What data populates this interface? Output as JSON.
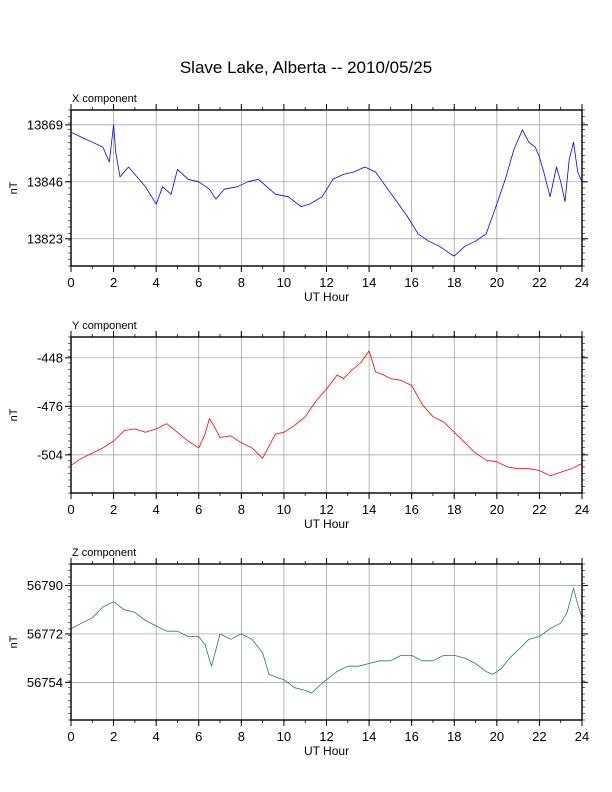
{
  "title": "Slave Lake, Alberta -- 2010/05/25",
  "chart_data": [
    {
      "type": "line",
      "panel_label": "X component",
      "xlabel": "UT Hour",
      "ylabel": "nT",
      "xlim": [
        0,
        24
      ],
      "ylim": [
        13812,
        13875
      ],
      "xticks": [
        0,
        2,
        4,
        6,
        8,
        10,
        12,
        14,
        16,
        18,
        20,
        22,
        24
      ],
      "yticks": [
        13823,
        13846,
        13869
      ],
      "grid": true,
      "color": "#0000ff",
      "x": [
        0,
        0.5,
        1,
        1.5,
        1.8,
        2.0,
        2.1,
        2.3,
        2.7,
        3.0,
        3.5,
        4.0,
        4.3,
        4.7,
        5.0,
        5.5,
        6.0,
        6.5,
        6.8,
        7.2,
        7.8,
        8.3,
        8.8,
        9.2,
        9.6,
        10.2,
        10.8,
        11.2,
        11.8,
        12.3,
        12.8,
        13.3,
        13.8,
        14.3,
        14.8,
        15.3,
        15.8,
        16.3,
        16.8,
        17.3,
        17.8,
        18.0,
        18.5,
        19.0,
        19.5,
        20.0,
        20.4,
        20.8,
        21.2,
        21.5,
        21.8,
        22.0,
        22.2,
        22.5,
        22.8,
        23.0,
        23.2,
        23.4,
        23.6,
        23.8,
        24.0
      ],
      "y": [
        13866,
        13864,
        13862,
        13860,
        13854,
        13869,
        13858,
        13848,
        13852,
        13849,
        13844,
        13837,
        13844,
        13841,
        13851,
        13847,
        13846,
        13843,
        13839,
        13843,
        13844,
        13846,
        13847,
        13844,
        13841,
        13840,
        13836,
        13837,
        13840,
        13847,
        13849,
        13850,
        13852,
        13850,
        13844,
        13838,
        13832,
        13825,
        13822,
        13820,
        13817,
        13816,
        13820,
        13822,
        13825,
        13837,
        13847,
        13859,
        13867,
        13862,
        13860,
        13856,
        13850,
        13840,
        13852,
        13846,
        13838,
        13855,
        13862,
        13850,
        13846
      ]
    },
    {
      "type": "line",
      "panel_label": "Y component",
      "xlabel": "UT Hour",
      "ylabel": "nT",
      "xlim": [
        0,
        24
      ],
      "ylim": [
        -526,
        -436
      ],
      "xticks": [
        0,
        2,
        4,
        6,
        8,
        10,
        12,
        14,
        16,
        18,
        20,
        22,
        24
      ],
      "yticks": [
        -448,
        -476,
        -504
      ],
      "grid": true,
      "color": "#ff0000",
      "x": [
        0,
        0.5,
        1,
        1.5,
        2.0,
        2.5,
        3.0,
        3.5,
        4.0,
        4.5,
        5.0,
        5.5,
        6.0,
        6.3,
        6.5,
        6.7,
        7.0,
        7.5,
        8.0,
        8.5,
        9.0,
        9.3,
        9.6,
        10.0,
        10.5,
        11.0,
        11.5,
        12.0,
        12.5,
        12.8,
        13.2,
        13.6,
        14.0,
        14.3,
        14.7,
        15.0,
        15.5,
        16.0,
        16.5,
        17.0,
        17.5,
        18.0,
        18.5,
        19.0,
        19.5,
        20.0,
        20.5,
        21.0,
        21.5,
        22.0,
        22.5,
        23.0,
        23.5,
        24.0
      ],
      "y": [
        -510,
        -506,
        -503,
        -500,
        -496,
        -490,
        -489,
        -491,
        -489,
        -486,
        -491,
        -496,
        -500,
        -492,
        -483,
        -487,
        -494,
        -493,
        -497,
        -500,
        -506,
        -499,
        -492,
        -491,
        -487,
        -482,
        -473,
        -466,
        -458,
        -460,
        -455,
        -451,
        -444,
        -456,
        -458,
        -460,
        -461,
        -464,
        -475,
        -482,
        -485,
        -491,
        -497,
        -503,
        -507,
        -508,
        -511,
        -512,
        -512,
        -513,
        -516,
        -514,
        -512,
        -509
      ]
    },
    {
      "type": "line",
      "panel_label": "Z component",
      "xlabel": "UT Hour",
      "ylabel": "nT",
      "xlim": [
        0,
        24
      ],
      "ylim": [
        -0.5,
        0.5
      ],
      "ylim_abs": [
        56740,
        56798
      ],
      "xticks": [
        0,
        2,
        4,
        6,
        8,
        10,
        12,
        14,
        16,
        18,
        20,
        22,
        24
      ],
      "yticks": [
        56754,
        56772,
        56790
      ],
      "grid": true,
      "color": "#2e7d4f",
      "x": [
        0,
        0.5,
        1.0,
        1.5,
        2.0,
        2.5,
        3.0,
        3.5,
        4.0,
        4.5,
        5.0,
        5.5,
        6.0,
        6.3,
        6.6,
        6.8,
        7.0,
        7.5,
        8.0,
        8.5,
        9.0,
        9.3,
        9.6,
        10.0,
        10.5,
        11.0,
        11.3,
        11.7,
        12.0,
        12.5,
        13.0,
        13.5,
        14.0,
        14.5,
        15.0,
        15.5,
        16.0,
        16.5,
        17.0,
        17.5,
        18.0,
        18.5,
        19.0,
        19.5,
        19.8,
        20.2,
        20.6,
        21.0,
        21.5,
        22.0,
        22.5,
        23.0,
        23.3,
        23.6,
        23.8,
        24.0
      ],
      "y": [
        56774,
        56776,
        56778,
        56782,
        56784,
        56781,
        56780,
        56777,
        56775,
        56773,
        56773,
        56771,
        56771,
        56768,
        56760,
        56766,
        56772,
        56770,
        56772,
        56770,
        56765,
        56757,
        56756,
        56755,
        56752,
        56751,
        56750,
        56753,
        56755,
        56758,
        56760,
        56760,
        56761,
        56762,
        56762,
        56764,
        56764,
        56762,
        56762,
        56764,
        56764,
        56763,
        56761,
        56758,
        56757,
        56759,
        56763,
        56766,
        56770,
        56771,
        56774,
        56776,
        56780,
        56789,
        56783,
        56778
      ]
    }
  ]
}
